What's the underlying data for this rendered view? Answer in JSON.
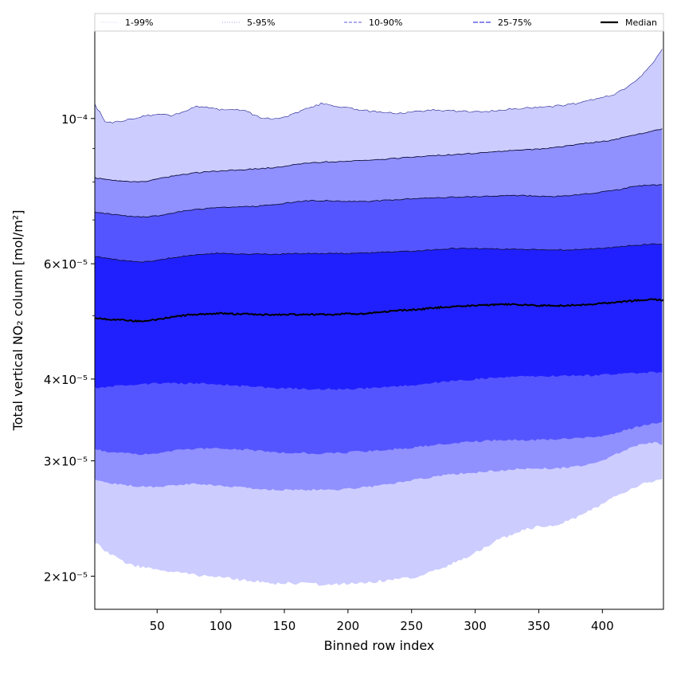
{
  "chart_data": {
    "type": "area",
    "title": "",
    "xlabel": "Binned row index",
    "ylabel": "Total vertical NO₂ column [mol/m²]",
    "xlim": [
      1,
      448
    ],
    "ylim": [
      1.78e-05,
      0.000136
    ],
    "yscale": "log",
    "xticks": [
      50,
      100,
      150,
      200,
      250,
      300,
      350,
      400
    ],
    "yticks": [
      {
        "value": 2e-05,
        "label": "2×10⁻⁵"
      },
      {
        "value": 3e-05,
        "label": "3×10⁻⁵"
      },
      {
        "value": 4e-05,
        "label": "4×10⁻⁵"
      },
      {
        "value": 6e-05,
        "label": "6×10⁻⁵"
      },
      {
        "value": 0.0001,
        "label": "10⁻⁴"
      }
    ],
    "legend_position": "top",
    "x": [
      1,
      10,
      20,
      30,
      40,
      50,
      60,
      70,
      80,
      90,
      100,
      110,
      120,
      130,
      140,
      150,
      160,
      170,
      180,
      190,
      200,
      210,
      220,
      230,
      240,
      250,
      260,
      270,
      280,
      290,
      300,
      310,
      320,
      330,
      340,
      350,
      360,
      370,
      380,
      390,
      400,
      410,
      420,
      430,
      440,
      448
    ],
    "series": [
      {
        "name": "Median",
        "values": [
          4.96e-05,
          4.94e-05,
          4.93e-05,
          4.91e-05,
          4.9e-05,
          4.93e-05,
          4.97e-05,
          5e-05,
          5.02e-05,
          5.03e-05,
          5.04e-05,
          5.03e-05,
          5.03e-05,
          5.02e-05,
          5.01e-05,
          5.02e-05,
          5.02e-05,
          5.02e-05,
          5.02e-05,
          5.02e-05,
          5.03e-05,
          5.03e-05,
          5.05e-05,
          5.07e-05,
          5.09e-05,
          5.1e-05,
          5.12e-05,
          5.14e-05,
          5.16e-05,
          5.17e-05,
          5.18e-05,
          5.19e-05,
          5.2e-05,
          5.2e-05,
          5.19e-05,
          5.18e-05,
          5.18e-05,
          5.18e-05,
          5.19e-05,
          5.2e-05,
          5.22e-05,
          5.24e-05,
          5.26e-05,
          5.28e-05,
          5.29e-05,
          5.28e-05
        ]
      },
      {
        "name": "25th percentile",
        "values": [
          3.88e-05,
          3.89e-05,
          3.91e-05,
          3.92e-05,
          3.93e-05,
          3.94e-05,
          3.94e-05,
          3.94e-05,
          3.94e-05,
          3.93e-05,
          3.92e-05,
          3.91e-05,
          3.9e-05,
          3.89e-05,
          3.88e-05,
          3.87e-05,
          3.87e-05,
          3.86e-05,
          3.86e-05,
          3.86e-05,
          3.86e-05,
          3.87e-05,
          3.88e-05,
          3.89e-05,
          3.9e-05,
          3.91e-05,
          3.93e-05,
          3.95e-05,
          3.97e-05,
          3.98e-05,
          4e-05,
          4.01e-05,
          4.02e-05,
          4.03e-05,
          4.04e-05,
          4.04e-05,
          4.04e-05,
          4.05e-05,
          4.05e-05,
          4.05e-05,
          4.06e-05,
          4.07e-05,
          4.08e-05,
          4.09e-05,
          4.1e-05,
          4.1e-05
        ]
      },
      {
        "name": "75th percentile",
        "values": [
          6.15e-05,
          6.12e-05,
          6.08e-05,
          6.05e-05,
          6.04e-05,
          6.07e-05,
          6.12e-05,
          6.16e-05,
          6.19e-05,
          6.21e-05,
          6.23e-05,
          6.22e-05,
          6.21e-05,
          6.21e-05,
          6.2e-05,
          6.21e-05,
          6.22e-05,
          6.22e-05,
          6.22e-05,
          6.22e-05,
          6.22e-05,
          6.23e-05,
          6.24e-05,
          6.25e-05,
          6.26e-05,
          6.27e-05,
          6.29e-05,
          6.31e-05,
          6.33e-05,
          6.33e-05,
          6.33e-05,
          6.32e-05,
          6.32e-05,
          6.32e-05,
          6.31e-05,
          6.3e-05,
          6.3e-05,
          6.3e-05,
          6.31e-05,
          6.32e-05,
          6.34e-05,
          6.36e-05,
          6.39e-05,
          6.41e-05,
          6.43e-05,
          6.43e-05
        ]
      },
      {
        "name": "10th percentile",
        "values": [
          3.12e-05,
          3.1e-05,
          3.09e-05,
          3.08e-05,
          3.07e-05,
          3.08e-05,
          3.1e-05,
          3.12e-05,
          3.13e-05,
          3.13e-05,
          3.13e-05,
          3.13e-05,
          3.12e-05,
          3.11e-05,
          3.1e-05,
          3.09e-05,
          3.09e-05,
          3.08e-05,
          3.08e-05,
          3.08e-05,
          3.09e-05,
          3.1e-05,
          3.11e-05,
          3.12e-05,
          3.13e-05,
          3.14e-05,
          3.16e-05,
          3.18e-05,
          3.19e-05,
          3.2e-05,
          3.21e-05,
          3.22e-05,
          3.23e-05,
          3.23e-05,
          3.23e-05,
          3.23e-05,
          3.23e-05,
          3.24e-05,
          3.25e-05,
          3.26e-05,
          3.27e-05,
          3.31e-05,
          3.35e-05,
          3.39e-05,
          3.42e-05,
          3.43e-05
        ]
      },
      {
        "name": "90th percentile",
        "values": [
          7.19e-05,
          7.16e-05,
          7.12e-05,
          7.08e-05,
          7.07e-05,
          7.1e-05,
          7.16e-05,
          7.22e-05,
          7.26e-05,
          7.29e-05,
          7.32e-05,
          7.33e-05,
          7.34e-05,
          7.35e-05,
          7.38e-05,
          7.42e-05,
          7.46e-05,
          7.49e-05,
          7.49e-05,
          7.48e-05,
          7.47e-05,
          7.47e-05,
          7.48e-05,
          7.5e-05,
          7.52e-05,
          7.54e-05,
          7.56e-05,
          7.57e-05,
          7.58e-05,
          7.59e-05,
          7.6e-05,
          7.61e-05,
          7.62e-05,
          7.63e-05,
          7.62e-05,
          7.6e-05,
          7.6e-05,
          7.62e-05,
          7.65e-05,
          7.68e-05,
          7.72e-05,
          7.77e-05,
          7.84e-05,
          7.89e-05,
          7.92e-05,
          7.91e-05
        ]
      },
      {
        "name": "5th percentile",
        "values": [
          2.81e-05,
          2.78e-05,
          2.76e-05,
          2.75e-05,
          2.74e-05,
          2.74e-05,
          2.75e-05,
          2.76e-05,
          2.77e-05,
          2.76e-05,
          2.75e-05,
          2.74e-05,
          2.73e-05,
          2.72e-05,
          2.71e-05,
          2.71e-05,
          2.71e-05,
          2.71e-05,
          2.71e-05,
          2.71e-05,
          2.72e-05,
          2.73e-05,
          2.74e-05,
          2.76e-05,
          2.78e-05,
          2.8e-05,
          2.82e-05,
          2.84e-05,
          2.86e-05,
          2.87e-05,
          2.88e-05,
          2.89e-05,
          2.9e-05,
          2.91e-05,
          2.92e-05,
          2.92e-05,
          2.92e-05,
          2.93e-05,
          2.94e-05,
          2.96e-05,
          3e-05,
          3.07e-05,
          3.13e-05,
          3.18e-05,
          3.2e-05,
          3.18e-05
        ]
      },
      {
        "name": "95th percentile",
        "values": [
          8.12e-05,
          8.06e-05,
          8.02e-05,
          8e-05,
          8.02e-05,
          8.08e-05,
          8.15e-05,
          8.21e-05,
          8.26e-05,
          8.29e-05,
          8.32e-05,
          8.34e-05,
          8.36e-05,
          8.38e-05,
          8.41e-05,
          8.46e-05,
          8.51e-05,
          8.56e-05,
          8.58e-05,
          8.59e-05,
          8.6e-05,
          8.62e-05,
          8.64e-05,
          8.67e-05,
          8.7e-05,
          8.73e-05,
          8.76e-05,
          8.78e-05,
          8.8e-05,
          8.82e-05,
          8.85e-05,
          8.88e-05,
          8.91e-05,
          8.94e-05,
          8.96e-05,
          8.98e-05,
          9.02e-05,
          9.07e-05,
          9.13e-05,
          9.18e-05,
          9.22e-05,
          9.29e-05,
          9.38e-05,
          9.48e-05,
          9.58e-05,
          9.64e-05
        ]
      },
      {
        "name": "1st percentile",
        "values": [
          2.25e-05,
          2.18e-05,
          2.12e-05,
          2.08e-05,
          2.06e-05,
          2.05e-05,
          2.03e-05,
          2.02e-05,
          2.01e-05,
          2e-05,
          1.99e-05,
          1.98e-05,
          1.97e-05,
          1.96e-05,
          1.95e-05,
          1.95e-05,
          1.95e-05,
          1.95e-05,
          1.94e-05,
          1.94e-05,
          1.95e-05,
          1.95e-05,
          1.96e-05,
          1.97e-05,
          1.98e-05,
          1.99e-05,
          2.01e-05,
          2.04e-05,
          2.08e-05,
          2.12e-05,
          2.17e-05,
          2.23e-05,
          2.28e-05,
          2.32e-05,
          2.36e-05,
          2.38e-05,
          2.38e-05,
          2.42e-05,
          2.46e-05,
          2.52e-05,
          2.58e-05,
          2.64e-05,
          2.7e-05,
          2.76e-05,
          2.79e-05,
          2.81e-05
        ]
      },
      {
        "name": "99th percentile",
        "values": [
          0.000105,
          9.85e-05,
          9.9e-05,
          0.0001,
          0.000101,
          0.0001015,
          0.000101,
          0.000102,
          0.0001045,
          0.000104,
          0.000103,
          0.0001035,
          0.0001025,
          0.0001005,
          0.0001,
          0.0001005,
          0.000102,
          0.000104,
          0.0001055,
          0.0001045,
          0.000104,
          0.000103,
          0.0001025,
          0.000102,
          0.0001018,
          0.0001022,
          0.0001028,
          0.000103,
          0.0001028,
          0.0001025,
          0.0001023,
          0.0001025,
          0.000103,
          0.0001035,
          0.0001038,
          0.000104,
          0.0001043,
          0.0001048,
          0.0001055,
          0.0001065,
          0.0001075,
          0.000109,
          0.000112,
          0.000116,
          0.000122,
          0.000128
        ]
      }
    ],
    "bands": [
      {
        "label": "1-99%",
        "lower": "1st percentile",
        "upper": "99th percentile",
        "fill": "#ccccff",
        "legend_color": "#d6d6f2",
        "dash": "1.5,1.5",
        "legend_width": 0.8
      },
      {
        "label": "5-95%",
        "lower": "5th percentile",
        "upper": "95th percentile",
        "fill": "#9090ff",
        "legend_color": "#a0a0ea",
        "dash": "1,2",
        "legend_width": 1.0
      },
      {
        "label": "10-90%",
        "lower": "10th percentile",
        "upper": "90th percentile",
        "fill": "#5555ff",
        "legend_color": "#7a7aee",
        "dash": "4,2",
        "legend_width": 1.2
      },
      {
        "label": "25-75%",
        "lower": "25th percentile",
        "upper": "75th percentile",
        "fill": "#2020ff",
        "legend_color": "#4040e8",
        "dash": "6,2",
        "legend_width": 1.3
      }
    ],
    "median": {
      "label": "Median",
      "color": "#000000"
    }
  }
}
